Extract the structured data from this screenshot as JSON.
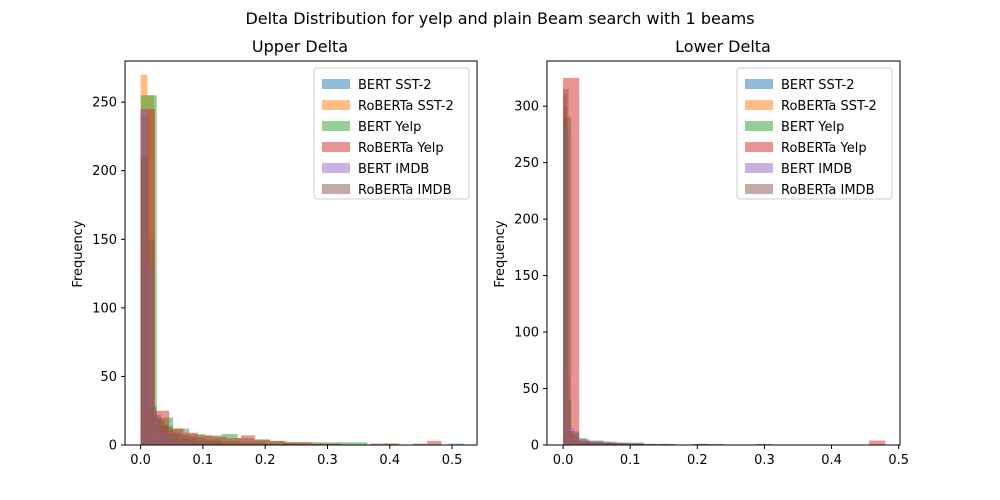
{
  "figure": {
    "title": "Delta Distribution for yelp and plain Beam search with 1 beams"
  },
  "series_colors": {
    "BERT SST-2": "#1f77b4",
    "RoBERTa SST-2": "#ff7f0e",
    "BERT Yelp": "#2ca02c",
    "RoBERTa Yelp": "#d62728",
    "BERT IMDB": "#9467bd",
    "RoBERTa IMDB": "#8c564b"
  },
  "chart_data": [
    {
      "type": "histogram",
      "title": "Upper Delta",
      "xlabel": "",
      "ylabel": "Frequency",
      "xlim": [
        -0.025,
        0.54
      ],
      "ylim": [
        0,
        280
      ],
      "xticks": [
        0.0,
        0.1,
        0.2,
        0.3,
        0.4,
        0.5
      ],
      "yticks": [
        0,
        50,
        100,
        150,
        200,
        250
      ],
      "legend_position": "top-right",
      "grid": false,
      "series": [
        {
          "name": "BERT SST-2",
          "bins": [
            [
              0.0,
              0.013,
              240
            ],
            [
              0.013,
              0.026,
              28
            ],
            [
              0.026,
              0.039,
              18
            ],
            [
              0.039,
              0.052,
              14
            ],
            [
              0.052,
              0.065,
              9
            ],
            [
              0.065,
              0.078,
              7
            ],
            [
              0.078,
              0.091,
              6
            ],
            [
              0.091,
              0.104,
              5
            ],
            [
              0.104,
              0.13,
              4
            ],
            [
              0.13,
              0.16,
              3
            ],
            [
              0.16,
              0.2,
              2
            ],
            [
              0.2,
              0.26,
              1
            ]
          ]
        },
        {
          "name": "RoBERTa SST-2",
          "bins": [
            [
              0.0,
              0.011,
              270
            ],
            [
              0.011,
              0.022,
              255
            ],
            [
              0.022,
              0.033,
              20
            ],
            [
              0.033,
              0.044,
              15
            ],
            [
              0.044,
              0.055,
              10
            ],
            [
              0.055,
              0.066,
              7
            ],
            [
              0.066,
              0.09,
              5
            ],
            [
              0.09,
              0.12,
              3
            ],
            [
              0.12,
              0.16,
              2
            ]
          ]
        },
        {
          "name": "BERT Yelp",
          "bins": [
            [
              0.0,
              0.026,
              255
            ],
            [
              0.026,
              0.052,
              20
            ],
            [
              0.052,
              0.078,
              12
            ],
            [
              0.078,
              0.104,
              8
            ],
            [
              0.104,
              0.13,
              7
            ],
            [
              0.13,
              0.156,
              8
            ],
            [
              0.156,
              0.182,
              5
            ],
            [
              0.182,
              0.208,
              4
            ],
            [
              0.208,
              0.234,
              3
            ],
            [
              0.234,
              0.26,
              2
            ],
            [
              0.26,
              0.286,
              2
            ],
            [
              0.286,
              0.312,
              2
            ],
            [
              0.312,
              0.338,
              2
            ],
            [
              0.338,
              0.364,
              2
            ],
            [
              0.39,
              0.416,
              1
            ],
            [
              0.494,
              0.52,
              1
            ]
          ]
        },
        {
          "name": "RoBERTa Yelp",
          "bins": [
            [
              0.0,
              0.023,
              245
            ],
            [
              0.023,
              0.046,
              25
            ],
            [
              0.046,
              0.069,
              12
            ],
            [
              0.069,
              0.092,
              9
            ],
            [
              0.092,
              0.115,
              7
            ],
            [
              0.115,
              0.138,
              6
            ],
            [
              0.138,
              0.161,
              5
            ],
            [
              0.161,
              0.184,
              7
            ],
            [
              0.184,
              0.207,
              4
            ],
            [
              0.207,
              0.23,
              3
            ],
            [
              0.23,
              0.253,
              2
            ],
            [
              0.253,
              0.276,
              2
            ],
            [
              0.276,
              0.299,
              1
            ],
            [
              0.299,
              0.322,
              1
            ],
            [
              0.368,
              0.391,
              1
            ],
            [
              0.391,
              0.414,
              1
            ],
            [
              0.437,
              0.46,
              1
            ],
            [
              0.46,
              0.483,
              3
            ]
          ]
        },
        {
          "name": "BERT IMDB",
          "bins": [
            [
              0.0,
              0.01,
              245
            ],
            [
              0.01,
              0.02,
              130
            ],
            [
              0.02,
              0.03,
              20
            ],
            [
              0.03,
              0.04,
              10
            ],
            [
              0.04,
              0.06,
              6
            ],
            [
              0.06,
              0.09,
              3
            ],
            [
              0.09,
              0.12,
              2
            ]
          ]
        },
        {
          "name": "RoBERTa IMDB",
          "bins": [
            [
              0.0,
              0.011,
              210
            ],
            [
              0.011,
              0.022,
              150
            ],
            [
              0.022,
              0.033,
              22
            ],
            [
              0.033,
              0.044,
              14
            ],
            [
              0.044,
              0.06,
              8
            ],
            [
              0.06,
              0.09,
              4
            ],
            [
              0.09,
              0.13,
              2
            ]
          ]
        }
      ]
    },
    {
      "type": "histogram",
      "title": "Lower Delta",
      "xlabel": "",
      "ylabel": "Frequency",
      "xlim": [
        -0.024,
        0.502
      ],
      "ylim": [
        0,
        340
      ],
      "xticks": [
        0.0,
        0.1,
        0.2,
        0.3,
        0.4,
        0.5
      ],
      "yticks": [
        0,
        50,
        100,
        150,
        200,
        250,
        300
      ],
      "legend_position": "top-right",
      "grid": false,
      "series": [
        {
          "name": "BERT SST-2",
          "bins": [
            [
              0.0,
              0.006,
              300
            ],
            [
              0.006,
              0.012,
              40
            ],
            [
              0.012,
              0.024,
              12
            ],
            [
              0.024,
              0.036,
              6
            ],
            [
              0.036,
              0.06,
              4
            ],
            [
              0.06,
              0.09,
              2
            ],
            [
              0.11,
              0.14,
              1
            ]
          ]
        },
        {
          "name": "RoBERTa SST-2",
          "bins": [
            [
              0.0,
              0.005,
              310
            ],
            [
              0.005,
              0.01,
              60
            ],
            [
              0.01,
              0.02,
              10
            ],
            [
              0.02,
              0.04,
              5
            ],
            [
              0.04,
              0.07,
              3
            ],
            [
              0.07,
              0.1,
              2
            ]
          ]
        },
        {
          "name": "BERT Yelp",
          "bins": [
            [
              0.0,
              0.012,
              290
            ],
            [
              0.012,
              0.024,
              10
            ],
            [
              0.024,
              0.036,
              5
            ],
            [
              0.036,
              0.06,
              3
            ],
            [
              0.06,
              0.09,
              2
            ],
            [
              0.09,
              0.12,
              2
            ],
            [
              0.12,
              0.16,
              1
            ],
            [
              0.2,
              0.24,
              1
            ]
          ]
        },
        {
          "name": "RoBERTa Yelp",
          "bins": [
            [
              0.0,
              0.024,
              325
            ],
            [
              0.024,
              0.048,
              3
            ],
            [
              0.048,
              0.072,
              2
            ],
            [
              0.072,
              0.096,
              1
            ],
            [
              0.096,
              0.12,
              1
            ],
            [
              0.144,
              0.168,
              1
            ],
            [
              0.192,
              0.216,
              1
            ],
            [
              0.288,
              0.312,
              1
            ],
            [
              0.456,
              0.48,
              4
            ]
          ]
        },
        {
          "name": "BERT IMDB",
          "bins": [
            [
              0.0,
              0.008,
              280
            ],
            [
              0.008,
              0.016,
              15
            ],
            [
              0.016,
              0.024,
              6
            ],
            [
              0.024,
              0.04,
              4
            ],
            [
              0.04,
              0.08,
              3
            ],
            [
              0.08,
              0.12,
              2
            ]
          ]
        },
        {
          "name": "RoBERTa IMDB",
          "bins": [
            [
              0.0,
              0.008,
              315
            ],
            [
              0.008,
              0.016,
              12
            ],
            [
              0.016,
              0.024,
              5
            ],
            [
              0.024,
              0.04,
              3
            ],
            [
              0.04,
              0.08,
              2
            ],
            [
              0.08,
              0.12,
              1
            ]
          ]
        }
      ]
    }
  ]
}
